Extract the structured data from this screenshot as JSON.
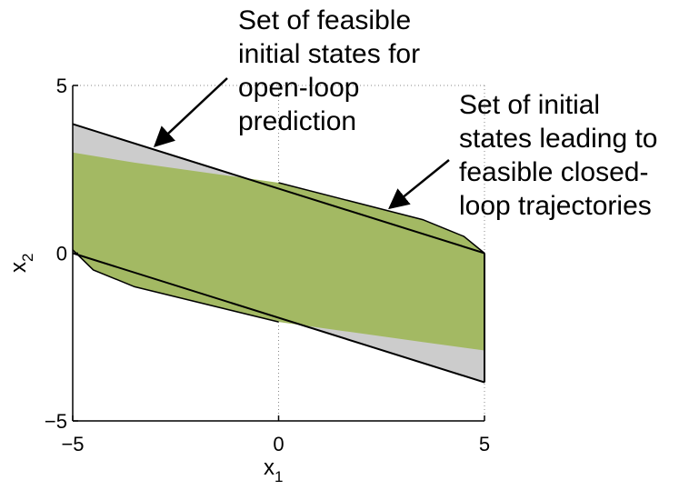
{
  "chart_data": {
    "type": "area",
    "xlabel": "x",
    "xlabel_sub": "1",
    "ylabel": "x",
    "ylabel_sub": "2",
    "xlim": [
      -5,
      5
    ],
    "ylim": [
      -5,
      5
    ],
    "xticks": [
      "-5",
      "0",
      "5"
    ],
    "yticks": [
      "-5",
      "0",
      "5"
    ],
    "grid": "dotted",
    "colors": {
      "outer_region": "#cccccc",
      "inner_region": "#a3b963",
      "boundary": "#000000"
    },
    "series": [
      {
        "points": [
          [
            -5,
            3.85
          ],
          [
            5,
            0.0
          ],
          [
            5,
            -3.85
          ],
          [
            -5,
            0.0
          ]
        ]
      },
      {
        "points": [
          [
            -5,
            3.0
          ],
          [
            -3.5,
            2.7
          ],
          [
            0,
            2.1
          ],
          [
            3.5,
            1.0
          ],
          [
            4.5,
            0.5
          ],
          [
            5,
            0.0
          ],
          [
            5,
            -2.9
          ],
          [
            3.5,
            -2.65
          ],
          [
            0,
            -2.05
          ],
          [
            -3.5,
            -1.0
          ],
          [
            -4.5,
            -0.5
          ],
          [
            -5,
            0.1
          ]
        ]
      }
    ],
    "annotations": [
      {
        "lines": [
          "Set of feasible",
          "initial states for",
          "open-loop",
          "prediction"
        ],
        "arrow_to": [
          -3,
          3.2
        ]
      },
      {
        "lines": [
          "Set of initial",
          "states leading to",
          "feasible closed-",
          "loop trajectories"
        ],
        "arrow_to": [
          2.7,
          1.35
        ]
      }
    ]
  }
}
